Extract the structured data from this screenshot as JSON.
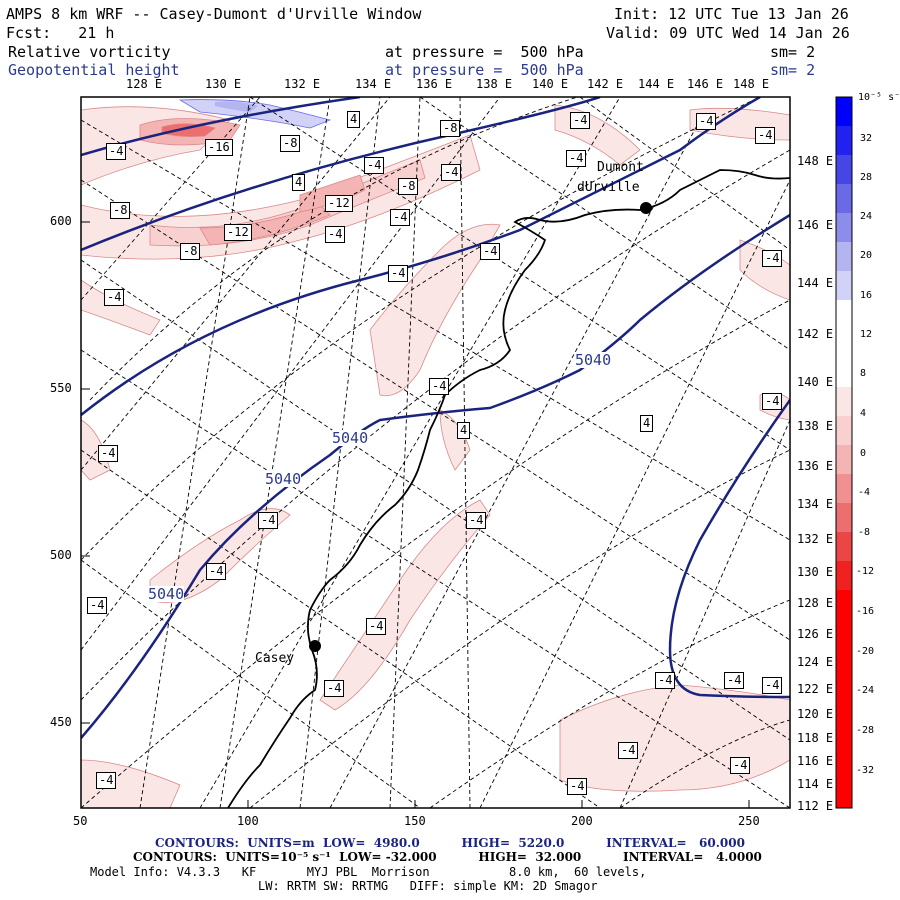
{
  "header": {
    "title": "AMPS 8 km WRF -- Casey-Dumont d'Urville Window",
    "init": "Init: 12 UTC Tue 13 Jan 26",
    "fcst": "Fcst:   21 h",
    "valid": "Valid: 09 UTC Wed 14 Jan 26",
    "field1_name": "Relative vorticity",
    "field1_level": "at pressure =  500 hPa",
    "field1_sm": "sm= 2",
    "field2_name": "Geopotential height",
    "field2_level": "at pressure =  500 hPa",
    "field2_sm": "sm= 2"
  },
  "lon_labels": [
    "128 E",
    "130 E",
    "132 E",
    "134 E",
    "136 E",
    "138 E",
    "140 E",
    "142 E",
    "144 E",
    "146 E",
    "148 E"
  ],
  "right_lon_labels": [
    "148 E",
    "146 E",
    "144 E",
    "142 E",
    "140 E",
    "138 E",
    "136 E",
    "134 E",
    "132 E",
    "130 E",
    "128 E",
    "126 E",
    "124 E",
    "122 E",
    "120 E",
    "118 E",
    "116 E",
    "114 E",
    "112 E"
  ],
  "y_axis_labels": [
    "600",
    "550",
    "500",
    "450"
  ],
  "x_axis_labels": [
    "50",
    "100",
    "150",
    "200",
    "250"
  ],
  "stations": [
    "Dumont",
    "dUrville",
    "Casey"
  ],
  "height_contour_label": "5040",
  "vorticity_labels": [
    "4",
    "-4",
    "-8",
    "-12",
    "-16"
  ],
  "colorbar": {
    "unit": "10⁻⁵ s⁻¹",
    "labels": [
      "32",
      "28",
      "24",
      "20",
      "16",
      "12",
      "8",
      "4",
      "0",
      "-4",
      "-8",
      "-12",
      "-16",
      "-20",
      "-24",
      "-28",
      "-32"
    ],
    "colors": [
      "#0000ff",
      "#2121f0",
      "#4646e6",
      "#6a6ae6",
      "#8c8ceb",
      "#b4b4f0",
      "#d2d2f8",
      "#ffffff",
      "#ffffff",
      "#fbe6e6",
      "#f8d0d0",
      "#f4b4b4",
      "#f09090",
      "#ec6e6e",
      "#ea4646",
      "#f02121",
      "#ff0000"
    ]
  },
  "footer": {
    "contours1": "CONTOURS:  UNITS=m  LOW=  4980.0          HIGH=  5220.0          INTERVAL=   60.000",
    "contours2": "CONTOURS:  UNITS=10⁻⁵ s⁻¹  LOW= -32.000          HIGH=  32.000          INTERVAL=   4.0000",
    "model_info": "Model Info: V4.3.3   KF       MYJ PBL  Morrison           8.0 km,  60 levels,",
    "model_info2": "LW: RRTM SW: RRTMG   DIFF: simple KM: 2D Smagor"
  }
}
